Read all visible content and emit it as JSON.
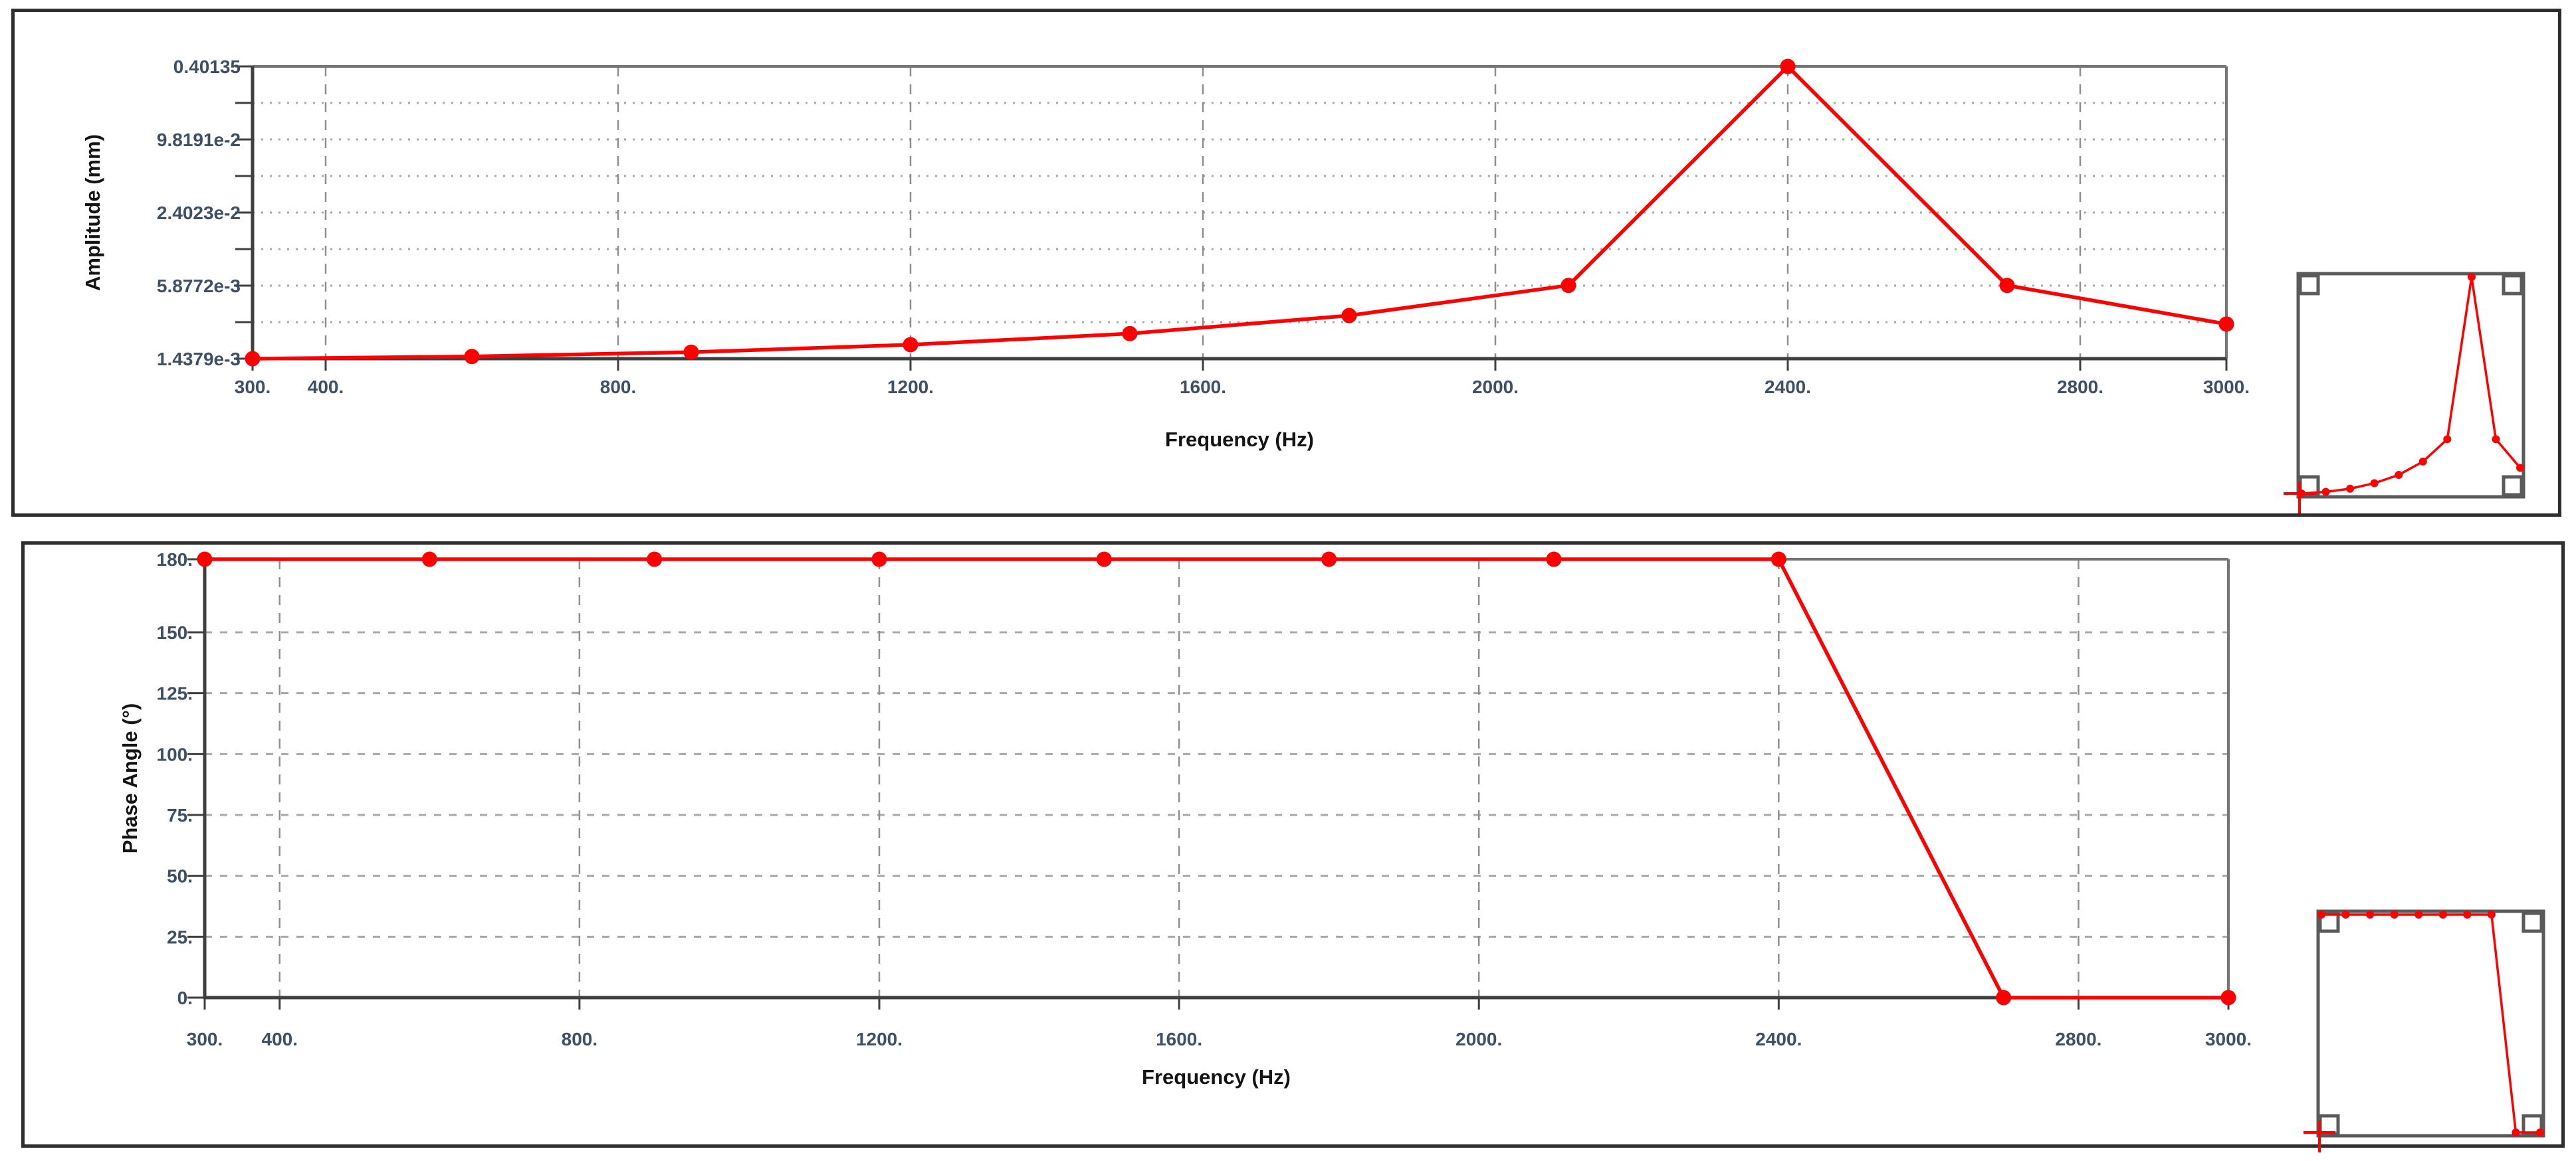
{
  "page": {
    "description": "Harmonic frequency response result charts",
    "series_color": "#fe0000",
    "tick_label_color": "#3d5066",
    "axis_title_color": "#141414"
  },
  "chart_data": [
    {
      "id": "amplitude",
      "type": "line",
      "title": "",
      "xlabel": "Frequency (Hz)",
      "ylabel": "Amplitude (mm)",
      "y_scale": "log",
      "grid": true,
      "legend": "none",
      "xlim": [
        300,
        3000
      ],
      "ylim": [
        0.0014379,
        0.40135
      ],
      "x": [
        300,
        600,
        900,
        1200,
        1500,
        1800,
        2100,
        2400,
        2700,
        3000
      ],
      "series": [
        {
          "name": "Amplitude",
          "color": "#fe0000",
          "values": [
            0.0014379,
            0.0015,
            0.00163,
            0.00188,
            0.00233,
            0.0033,
            0.0059,
            0.40135,
            0.0059,
            0.0028
          ]
        }
      ],
      "x_ticks": {
        "values": [
          300,
          400,
          800,
          1200,
          1600,
          2000,
          2400,
          2800,
          3000
        ],
        "labels": [
          "300.",
          "400.",
          "800.",
          "1200.",
          "1600.",
          "2000.",
          "2400.",
          "2800.",
          "3000."
        ]
      },
      "y_ticks": {
        "values": [
          0.40135,
          0.098191,
          0.024023,
          0.0058772,
          0.0014379
        ],
        "labels": [
          "0.40135",
          "9.8191e-2",
          "2.4023e-2",
          "5.8772e-3",
          "1.4379e-3"
        ]
      },
      "peak": {
        "frequency": 2400,
        "value": "0.40135"
      }
    },
    {
      "id": "phase",
      "type": "line",
      "title": "",
      "xlabel": "Frequency (Hz)",
      "ylabel": "Phase Angle (°)",
      "y_scale": "linear",
      "grid": true,
      "legend": "none",
      "xlim": [
        300,
        3000
      ],
      "ylim": [
        0,
        180
      ],
      "x": [
        300,
        600,
        900,
        1200,
        1500,
        1800,
        2100,
        2400,
        2700,
        3000
      ],
      "series": [
        {
          "name": "Phase Angle",
          "color": "#fe0000",
          "values": [
            180,
            180,
            180,
            180,
            180,
            180,
            180,
            180,
            0,
            0
          ]
        }
      ],
      "x_ticks": {
        "values": [
          300,
          400,
          800,
          1200,
          1600,
          2000,
          2400,
          2800,
          3000
        ],
        "labels": [
          "300.",
          "400.",
          "800.",
          "1200.",
          "1600.",
          "2000.",
          "2400.",
          "2800.",
          "3000."
        ]
      },
      "y_ticks": {
        "values": [
          180,
          150,
          125,
          100,
          75,
          50,
          25,
          0
        ],
        "labels": [
          "180.",
          "150.",
          "125.",
          "100.",
          "75.",
          "50.",
          "25.",
          "0."
        ]
      }
    }
  ]
}
